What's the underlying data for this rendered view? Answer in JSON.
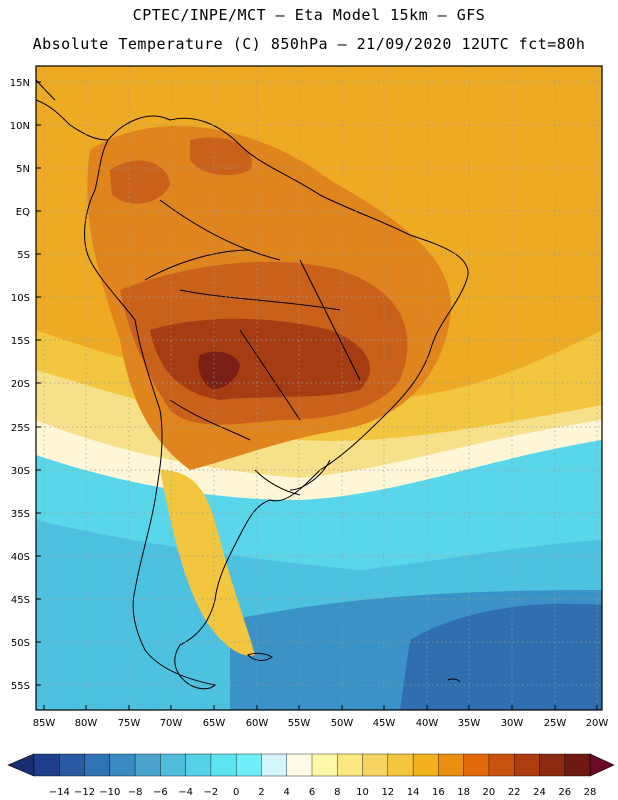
{
  "header": {
    "line1": "CPTEC/INPE/MCT –  Eta Model 15km – GFS",
    "line2": "Absolute Temperature (C) 850hPa – 21/09/2020 12UTC fct=80h"
  },
  "axes": {
    "lat_labels": [
      "15N",
      "10N",
      "5N",
      "EQ",
      "5S",
      "10S",
      "15S",
      "20S",
      "25S",
      "30S",
      "35S",
      "40S",
      "45S",
      "50S",
      "55S"
    ],
    "lon_labels": [
      "85W",
      "80W",
      "75W",
      "70W",
      "65W",
      "60W",
      "55W",
      "50W",
      "45W",
      "40W",
      "35W",
      "30W",
      "25W",
      "20W"
    ]
  },
  "colorbar": {
    "labels": [
      "-14",
      "-12",
      "-10",
      "-8",
      "-6",
      "-4",
      "-2",
      "0",
      "2",
      "4",
      "6",
      "8",
      "10",
      "12",
      "14",
      "16",
      "18",
      "20",
      "22",
      "24",
      "26",
      "28"
    ],
    "colors": [
      "#1f3f8c",
      "#2a5aa3",
      "#2f72b6",
      "#3a8ac2",
      "#4aa3cc",
      "#50bcd9",
      "#56d2e8",
      "#5ee3f1",
      "#6ff0f8",
      "#d2f6fb",
      "#fffbe6",
      "#fff7a8",
      "#fbe882",
      "#f6d462",
      "#f4c53e",
      "#f1b21e",
      "#ea8f10",
      "#e06a0c",
      "#c9520e",
      "#ad3d0f",
      "#8c2a11",
      "#6e1a12"
    ],
    "lower_extend_color": "#1a2f72",
    "upper_extend_color": "#6a0a24"
  },
  "field_colors": {
    "very_hot": "#7a1f15",
    "hot": "#a63d12",
    "warm": "#c9611b",
    "orange": "#e0851d",
    "amber": "#eeaa22",
    "yellow": "#f3c640",
    "pale": "#f7e08a",
    "cream": "#fff6d8",
    "cyan": "#5ad6ea",
    "aqua": "#4cc2e0",
    "blue": "#3a92c7",
    "deep_blue": "#2f6fb0",
    "coast": "#000000",
    "grid": "#9a9a9a"
  }
}
